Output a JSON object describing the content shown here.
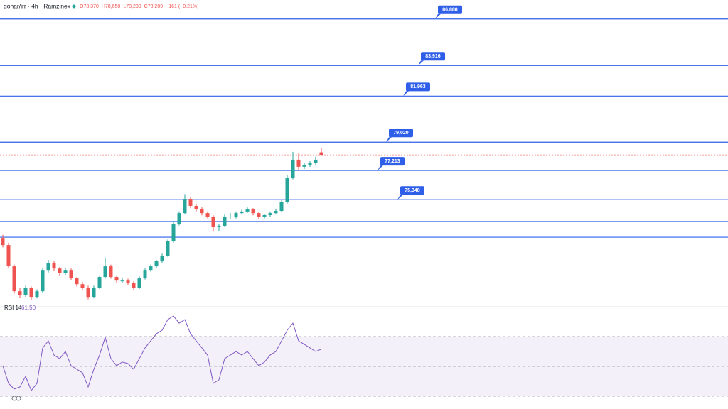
{
  "chart_data": [
    {
      "type": "candlestick",
      "title": "gohar/irr · 4h · Ramzinex",
      "ohlc_labels": [
        "O78,370",
        "H78,650",
        "L78,230",
        "C78,209"
      ],
      "change_label": "−161 (−0.21%)",
      "up_color": "#26a69a",
      "down_color": "#ef5350",
      "level_color": "#2f5fe8",
      "ylim": [
        68600,
        88100
      ],
      "levels": [
        {
          "value": 86888,
          "label": "86,888"
        },
        {
          "value": 83916,
          "label": "83,916"
        },
        {
          "value": 81963,
          "label": "81,963"
        },
        {
          "value": 79020,
          "label": "79,020"
        },
        {
          "value": 77213,
          "label": "77,213"
        },
        {
          "value": 75348,
          "label": "75,348"
        },
        73950,
        72950
      ],
      "candles": [
        [
          72900,
          73100,
          72300,
          72450
        ],
        [
          72450,
          72600,
          70950,
          71090
        ],
        [
          71090,
          71200,
          69350,
          69500
        ],
        [
          69500,
          69700,
          69100,
          69270
        ],
        [
          69270,
          69850,
          69150,
          69730
        ],
        [
          69730,
          69800,
          68950,
          69140
        ],
        [
          69140,
          69620,
          69050,
          69500
        ],
        [
          69500,
          71000,
          69400,
          70860
        ],
        [
          70860,
          71500,
          70700,
          71320
        ],
        [
          71320,
          71450,
          70800,
          70950
        ],
        [
          70950,
          71050,
          70500,
          70640
        ],
        [
          70640,
          71000,
          70550,
          70860
        ],
        [
          70860,
          70950,
          70200,
          70320
        ],
        [
          70320,
          70400,
          69800,
          69950
        ],
        [
          69950,
          70100,
          69600,
          69730
        ],
        [
          69730,
          69850,
          68980,
          69140
        ],
        [
          69140,
          69850,
          69050,
          69730
        ],
        [
          69730,
          70500,
          69650,
          70410
        ],
        [
          70410,
          71600,
          70300,
          71090
        ],
        [
          71090,
          71200,
          70300,
          70410
        ],
        [
          70410,
          70500,
          70050,
          70180
        ],
        [
          70180,
          70350,
          70050,
          70180
        ],
        [
          70180,
          70300,
          69900,
          70050
        ],
        [
          70050,
          70150,
          69600,
          69730
        ],
        [
          69730,
          70450,
          69650,
          70320
        ],
        [
          70320,
          70950,
          70250,
          70860
        ],
        [
          70860,
          71200,
          70750,
          71090
        ],
        [
          71090,
          71500,
          71000,
          71410
        ],
        [
          71410,
          71900,
          71300,
          71770
        ],
        [
          71770,
          72800,
          71700,
          72680
        ],
        [
          72680,
          74000,
          72600,
          73810
        ],
        [
          73810,
          74600,
          73700,
          74490
        ],
        [
          74490,
          75700,
          74400,
          75400
        ],
        [
          75400,
          75500,
          74800,
          74950
        ],
        [
          74950,
          75100,
          74600,
          74720
        ],
        [
          74720,
          74850,
          74350,
          74490
        ],
        [
          74490,
          74600,
          74150,
          74270
        ],
        [
          74270,
          74350,
          73300,
          73590
        ],
        [
          73590,
          73800,
          73350,
          73680
        ],
        [
          73680,
          74400,
          73600,
          74270
        ],
        [
          74270,
          74500,
          74100,
          74270
        ],
        [
          74270,
          74600,
          74150,
          74490
        ],
        [
          74490,
          74700,
          74400,
          74590
        ],
        [
          74590,
          74850,
          74500,
          74720
        ],
        [
          74720,
          74800,
          74350,
          74490
        ],
        [
          74490,
          74550,
          74100,
          74270
        ],
        [
          74270,
          74450,
          74150,
          74360
        ],
        [
          74360,
          74600,
          74250,
          74490
        ],
        [
          74490,
          74750,
          74400,
          74630
        ],
        [
          74630,
          75300,
          74550,
          75180
        ],
        [
          75180,
          76900,
          75100,
          76760
        ],
        [
          76760,
          78400,
          76650,
          77900
        ],
        [
          77900,
          78300,
          77200,
          77450
        ],
        [
          77450,
          77700,
          77300,
          77580
        ],
        [
          77580,
          77800,
          77450,
          77670
        ],
        [
          77670,
          78100,
          77550,
          77900
        ],
        [
          78370,
          78650,
          78230,
          78209
        ]
      ]
    },
    {
      "type": "line",
      "name": "RSI 14",
      "last_label": "61.50",
      "color": "#7e57c2",
      "ylim": [
        21.4,
        86.2
      ],
      "bands": [
        30,
        50,
        70
      ],
      "values": [
        50.5,
        38.6,
        34.8,
        36.2,
        43.3,
        33.8,
        38.6,
        62.4,
        67.1,
        57.6,
        55.2,
        60.0,
        50.5,
        48.1,
        45.7,
        36.2,
        48.1,
        57.6,
        69.5,
        55.2,
        50.5,
        52.9,
        51.9,
        48.1,
        55.2,
        62.4,
        67.1,
        71.9,
        74.3,
        81.4,
        83.8,
        79.0,
        81.4,
        71.9,
        67.1,
        62.4,
        57.6,
        38.6,
        41.0,
        55.2,
        57.6,
        60.0,
        57.6,
        60.0,
        55.2,
        50.5,
        52.9,
        57.6,
        60.0,
        67.1,
        74.3,
        79.0,
        67.1,
        64.8,
        62.4,
        60.0,
        61.5
      ]
    }
  ]
}
